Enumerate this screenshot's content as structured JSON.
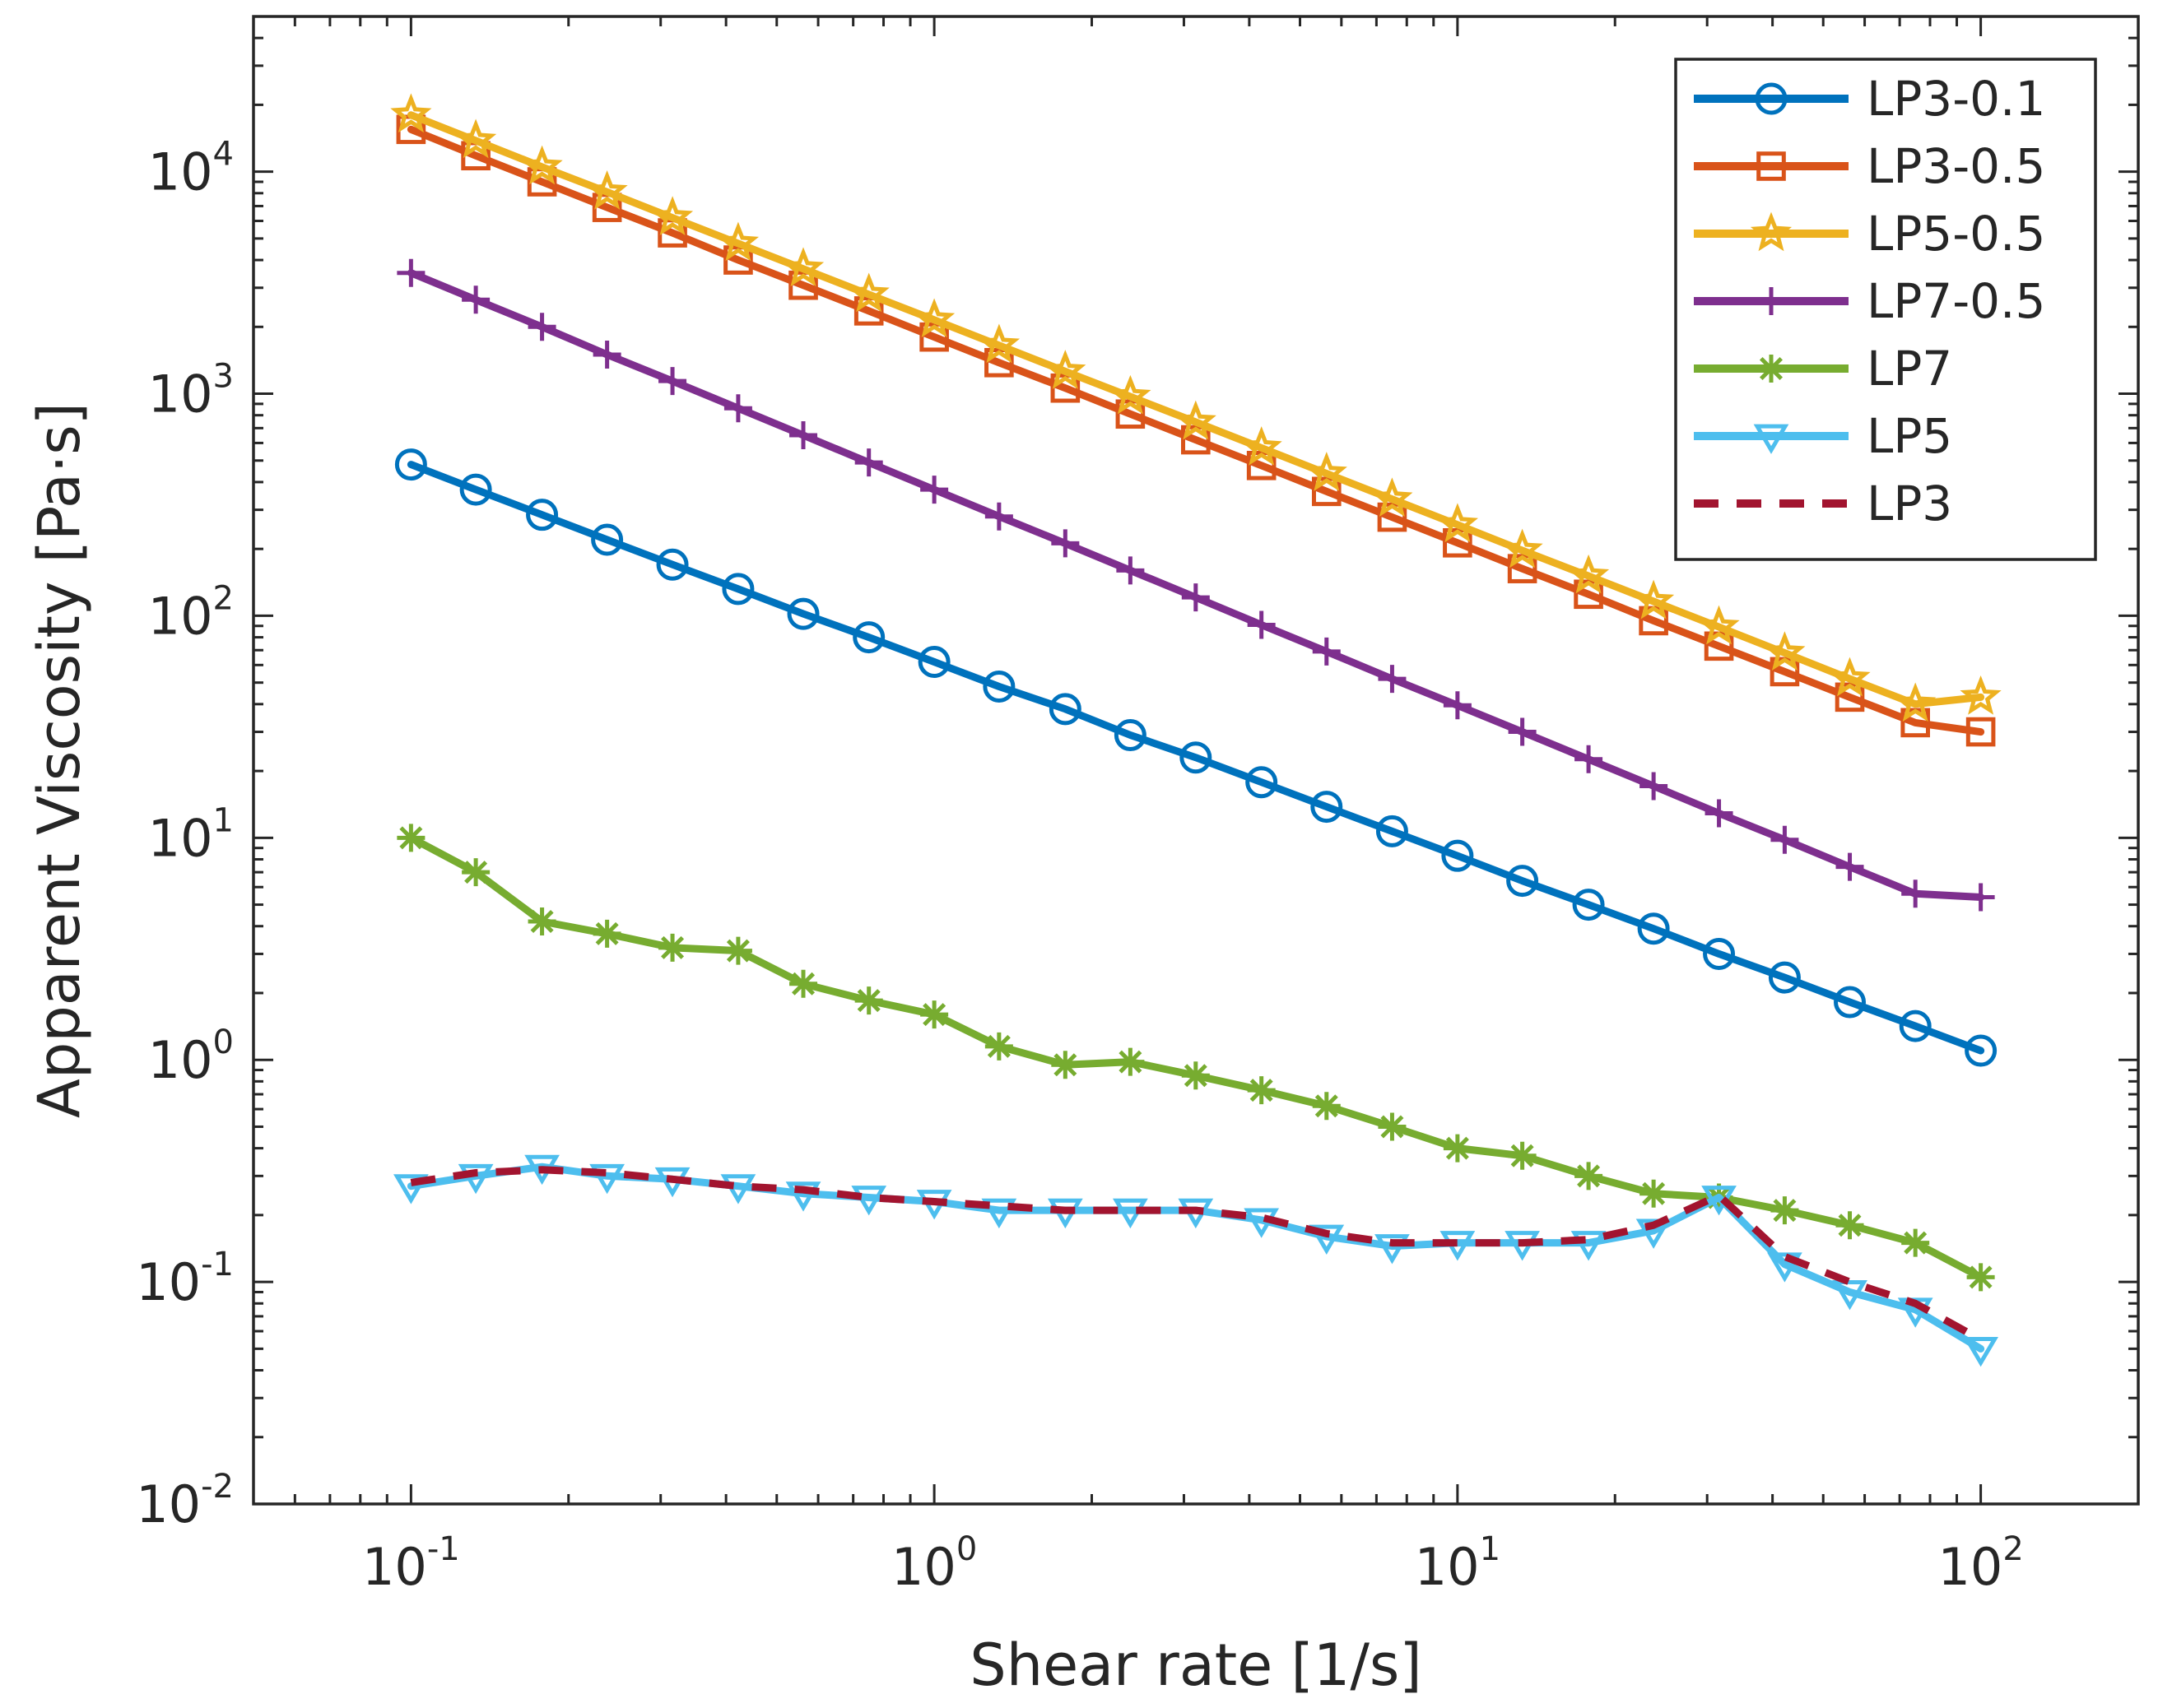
{
  "chart_data": {
    "type": "line",
    "title": "",
    "xlabel": "Shear rate [1/s]",
    "ylabel": "Apparent Viscosity [Pa·s]",
    "xscale": "log",
    "yscale": "log",
    "xlim": [
      0.05,
      200
    ],
    "ylim": [
      0.01,
      50000
    ],
    "grid": false,
    "legend_position": "top-right",
    "x_ticks": [
      {
        "base": "10",
        "exp": "-1",
        "value": 0.1
      },
      {
        "base": "10",
        "exp": "0",
        "value": 1
      },
      {
        "base": "10",
        "exp": "1",
        "value": 10
      },
      {
        "base": "10",
        "exp": "2",
        "value": 100
      }
    ],
    "y_ticks": [
      {
        "base": "10",
        "exp": "-2",
        "value": 0.01
      },
      {
        "base": "10",
        "exp": "-1",
        "value": 0.1
      },
      {
        "base": "10",
        "exp": "0",
        "value": 1
      },
      {
        "base": "10",
        "exp": "1",
        "value": 10
      },
      {
        "base": "10",
        "exp": "2",
        "value": 100
      },
      {
        "base": "10",
        "exp": "3",
        "value": 1000
      },
      {
        "base": "10",
        "exp": "4",
        "value": 10000
      }
    ],
    "x": [
      0.1,
      0.133,
      0.178,
      0.237,
      0.316,
      0.422,
      0.562,
      0.75,
      1.0,
      1.33,
      1.78,
      2.37,
      3.16,
      4.22,
      5.62,
      7.5,
      10,
      13.3,
      17.8,
      23.7,
      31.6,
      42.2,
      56.2,
      75,
      100
    ],
    "series": [
      {
        "name": "LP3-0.1",
        "color": "#0072BD",
        "marker": "circle",
        "dash": "solid",
        "values": [
          480,
          370,
          285,
          220,
          170,
          132,
          102,
          80,
          62,
          48,
          38,
          29,
          23,
          17.8,
          13.8,
          10.7,
          8.3,
          6.4,
          5.0,
          3.9,
          3.0,
          2.35,
          1.82,
          1.42,
          1.1
        ]
      },
      {
        "name": "LP3-0.5",
        "color": "#D95319",
        "marker": "square",
        "dash": "solid",
        "values": [
          15500,
          11800,
          9000,
          6900,
          5300,
          4000,
          3080,
          2360,
          1800,
          1380,
          1060,
          810,
          620,
          475,
          363,
          278,
          213,
          163,
          125,
          95,
          73,
          56,
          43,
          33,
          30
        ]
      },
      {
        "name": "LP5-0.5",
        "color": "#EDB120",
        "marker": "star",
        "dash": "solid",
        "values": [
          18000,
          13800,
          10500,
          8100,
          6200,
          4750,
          3650,
          2800,
          2150,
          1650,
          1260,
          970,
          745,
          570,
          437,
          335,
          257,
          197,
          151,
          116,
          89,
          68,
          52,
          40,
          43
        ]
      },
      {
        "name": "LP7-0.5",
        "color": "#7E2F8E",
        "marker": "plus",
        "dash": "solid",
        "values": [
          3500,
          2650,
          2000,
          1500,
          1140,
          860,
          650,
          490,
          370,
          280,
          212,
          160,
          121,
          91,
          69,
          52,
          39.5,
          30,
          22.6,
          17.1,
          12.9,
          9.8,
          7.4,
          5.6,
          5.4
        ]
      },
      {
        "name": "LP7",
        "color": "#77AC30",
        "marker": "asterisk",
        "dash": "solid",
        "values": [
          10,
          7,
          4.2,
          3.7,
          3.2,
          3.1,
          2.2,
          1.85,
          1.6,
          1.15,
          0.95,
          0.98,
          0.85,
          0.73,
          0.62,
          0.5,
          0.4,
          0.37,
          0.3,
          0.25,
          0.24,
          0.21,
          0.18,
          0.15,
          0.105
        ]
      },
      {
        "name": "LP5",
        "color": "#4DBEEE",
        "marker": "triangle-down",
        "dash": "solid",
        "values": [
          0.27,
          0.3,
          0.33,
          0.3,
          0.29,
          0.27,
          0.25,
          0.24,
          0.23,
          0.21,
          0.21,
          0.21,
          0.21,
          0.19,
          0.16,
          0.145,
          0.15,
          0.15,
          0.15,
          0.17,
          0.24,
          0.12,
          0.09,
          0.075,
          0.05
        ]
      },
      {
        "name": "LP3",
        "color": "#A2142F",
        "marker": "none",
        "dash": "dashed",
        "values": [
          0.28,
          0.31,
          0.32,
          0.31,
          0.29,
          0.27,
          0.26,
          0.24,
          0.23,
          0.22,
          0.21,
          0.21,
          0.21,
          0.195,
          0.165,
          0.15,
          0.15,
          0.15,
          0.155,
          0.18,
          0.245,
          0.13,
          0.1,
          0.08,
          0.055
        ]
      }
    ]
  }
}
